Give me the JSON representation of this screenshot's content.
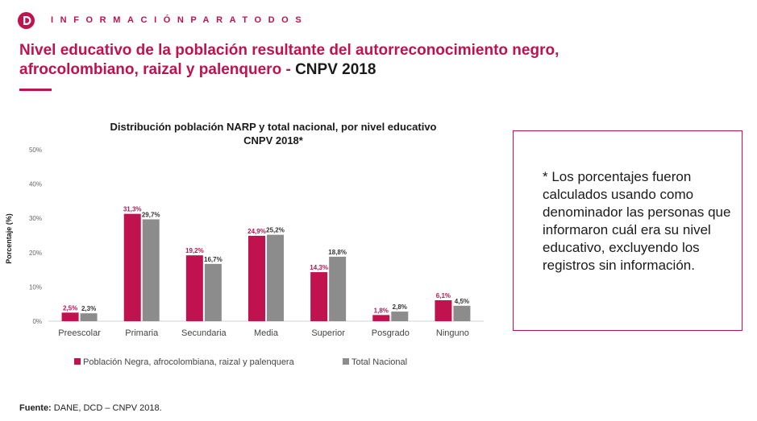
{
  "brand": {
    "text": "INFORMACIÓNPARATODOS",
    "logo_letter": "D"
  },
  "title": {
    "part1": "Nivel educativo de la población resultante del autorreconocimiento negro, afrocolombiano, raizal y palenquero - ",
    "part2": "CNPV 2018"
  },
  "note": "* Los porcentajes fueron calculados usando como denominador las personas que informaron cuál era su nivel educativo, excluyendo los registros sin información.",
  "source": {
    "label": "Fuente:",
    "text": " DANE, DCD – CNPV 2018."
  },
  "colors": {
    "accent": "#c0124f",
    "series1": "#c0124f",
    "series2": "#8c8c8c"
  },
  "chart_data": {
    "type": "bar",
    "title": [
      "Distribución población NARP y total nacional, por nivel educativo",
      "CNPV 2018*"
    ],
    "ylabel": "Porcentaje (%)",
    "xlabel": "",
    "ylim": [
      0,
      50
    ],
    "yticks": [
      "0%",
      "10%",
      "20%",
      "30%",
      "40%",
      "50%"
    ],
    "ytick_values": [
      0,
      10,
      20,
      30,
      40,
      50
    ],
    "categories": [
      "Preescolar",
      "Primaria",
      "Secundaria",
      "Media",
      "Superior",
      "Posgrado",
      "Ninguno"
    ],
    "series": [
      {
        "name": "Población Negra, afrocolombiana, raizal y palenquera",
        "values": [
          2.5,
          31.3,
          19.2,
          24.9,
          14.3,
          1.8,
          6.1
        ],
        "labels": [
          "2,5%",
          "31,3%",
          "19,2%",
          "24,9%",
          "14,3%",
          "1,8%",
          "6,1%"
        ]
      },
      {
        "name": "Total Nacional",
        "values": [
          2.3,
          29.7,
          16.7,
          25.2,
          18.8,
          2.8,
          4.5
        ],
        "labels": [
          "2,3%",
          "29,7%",
          "16,7%",
          "25,2%",
          "18,8%",
          "2,8%",
          "4,5%"
        ]
      }
    ],
    "legend": "bottom",
    "grid": false
  }
}
